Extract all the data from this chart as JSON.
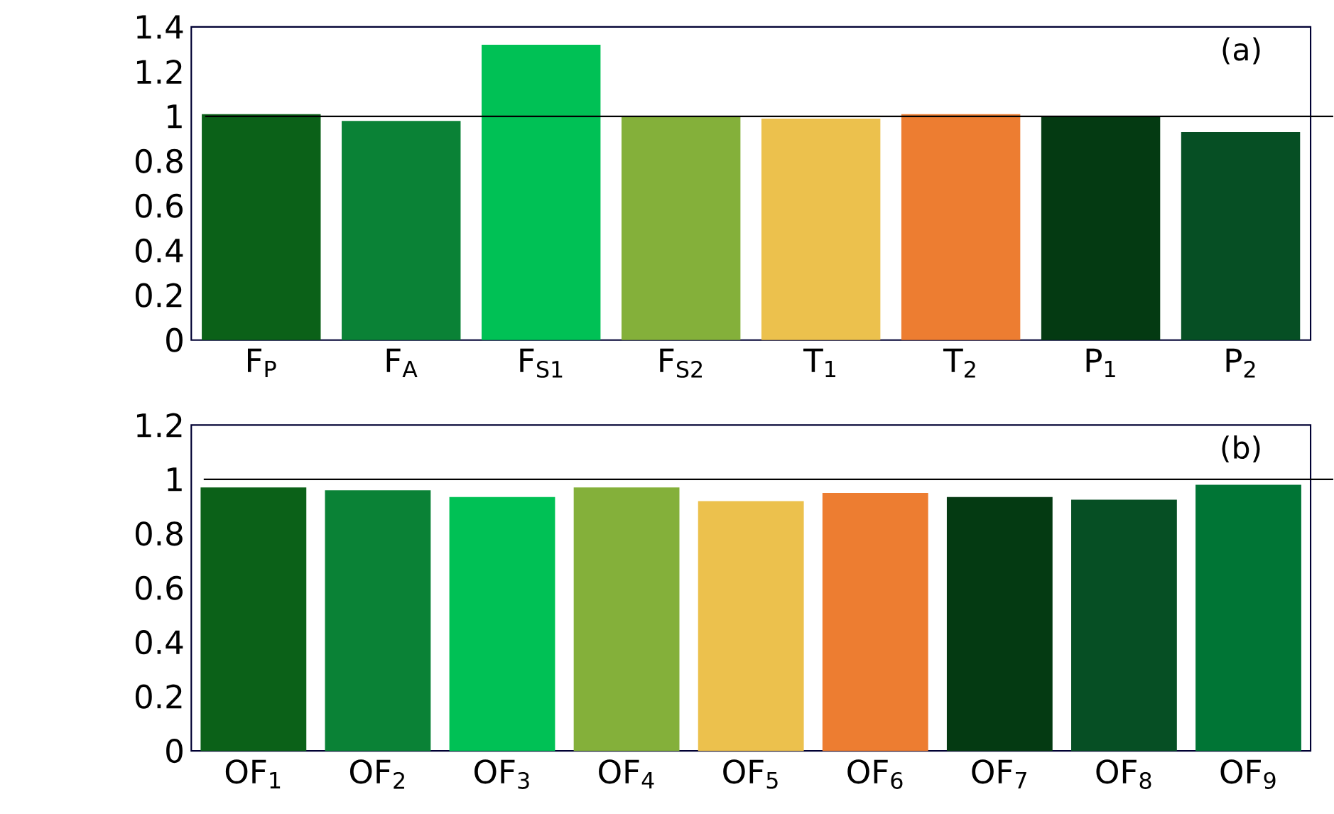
{
  "chart_data": [
    {
      "type": "bar",
      "categories": [
        "F$_{P}$",
        "F$_{A}$",
        "F$_{S1}$",
        "F$_{S2}$",
        "T$_{1}$",
        "T$_{2}$",
        "P$_{1}$",
        "P$_{2}$"
      ],
      "values": [
        1.01,
        0.98,
        1.32,
        1.0,
        0.99,
        1.01,
        1.0,
        0.93
      ],
      "colors": [
        "#0b6118",
        "#0a8236",
        "#00c155",
        "#84b03a",
        "#ecc14d",
        "#ed7d31",
        "#043a12",
        "#064f24"
      ],
      "ylim": [
        0,
        1.4
      ],
      "yticks": [
        0,
        0.2,
        0.4,
        0.6,
        0.8,
        1,
        1.2,
        1.4
      ],
      "ref_lines": [
        {
          "axis": "y",
          "value": 1,
          "color": "#000000"
        }
      ],
      "annotations": [
        "(a)"
      ]
    },
    {
      "type": "bar",
      "categories": [
        "OF$_{1}$",
        "OF$_{2}$",
        "OF$_{3}$",
        "OF$_{4}$",
        "OF$_{5}$",
        "OF$_{6}$",
        "OF$_{7}$",
        "OF$_{8}$",
        "OF$_{9}$"
      ],
      "values": [
        0.97,
        0.96,
        0.935,
        0.97,
        0.92,
        0.95,
        0.935,
        0.925,
        0.98
      ],
      "colors": [
        "#0b6118",
        "#0a8236",
        "#00c155",
        "#84b03a",
        "#ecc14d",
        "#ed7d31",
        "#043a12",
        "#064f24",
        "#007535"
      ],
      "ylim": [
        0,
        1.2
      ],
      "yticks": [
        0,
        0.2,
        0.4,
        0.6,
        0.8,
        1,
        1.2
      ],
      "ref_lines": [
        {
          "axis": "y",
          "value": 1,
          "color": "#000000"
        }
      ],
      "annotations": [
        "(b)"
      ]
    }
  ]
}
